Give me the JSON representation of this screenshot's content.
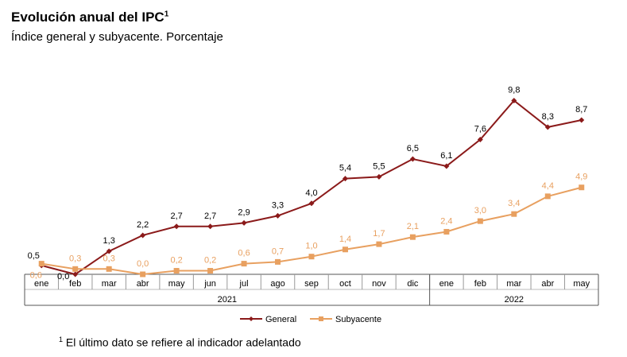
{
  "title": "Evolución anual del IPC",
  "title_sup": "1",
  "subtitle": "Índice general y subyacente. Porcentaje",
  "footnote_sup": "1",
  "footnote": "El último dato se refiere al indicador adelantado",
  "chart_data": {
    "type": "line",
    "categories": [
      "ene",
      "feb",
      "mar",
      "abr",
      "may",
      "jun",
      "jul",
      "ago",
      "sep",
      "oct",
      "nov",
      "dic",
      "ene",
      "feb",
      "mar",
      "abr",
      "may"
    ],
    "year_groups": [
      {
        "label": "2021",
        "count": 12
      },
      {
        "label": "2022",
        "count": 5
      }
    ],
    "series": [
      {
        "name": "General",
        "color": "#8b1a1a",
        "marker": "diamond",
        "values": [
          0.5,
          0.0,
          1.3,
          2.2,
          2.7,
          2.7,
          2.9,
          3.3,
          4.0,
          5.4,
          5.5,
          6.5,
          6.1,
          7.6,
          9.8,
          8.3,
          8.7
        ],
        "labels": [
          "0,5",
          "0,0",
          "1,3",
          "2,2",
          "2,7",
          "2,7",
          "2,9",
          "3,3",
          "4,0",
          "5,4",
          "5,5",
          "6,5",
          "6,1",
          "7,6",
          "9,8",
          "8,3",
          "8,7"
        ]
      },
      {
        "name": "Subyacente",
        "color": "#e8a060",
        "marker": "square",
        "values": [
          0.6,
          0.3,
          0.3,
          0.0,
          0.2,
          0.2,
          0.6,
          0.7,
          1.0,
          1.4,
          1.7,
          2.1,
          2.4,
          3.0,
          3.4,
          4.4,
          4.9
        ],
        "labels": [
          "0,6",
          "0,3",
          "0,3",
          "0,0",
          "0,2",
          "0,2",
          "0,6",
          "0,7",
          "1,0",
          "1,4",
          "1,7",
          "2,1",
          "2,4",
          "3,0",
          "3,4",
          "4,4",
          "4,9"
        ]
      }
    ],
    "ylim": [
      0,
      10
    ],
    "grid": false,
    "legend": "bottom"
  }
}
